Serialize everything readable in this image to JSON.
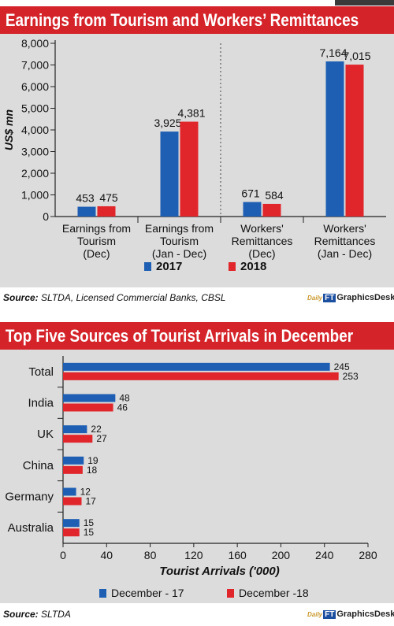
{
  "chart1": {
    "title": "Earnings from Tourism and Workers’ Remittances",
    "source_label": "Source:",
    "source_text": "SLTDA, Licensed Commercial Banks, CBSL",
    "logo": {
      "daily": "Daily",
      "ft": "FT",
      "desk": "GraphicsDesk"
    }
  },
  "chart2": {
    "title": "Top Five Sources of Tourist Arrivals in December",
    "source_label": "Source:",
    "source_text": "SLTDA",
    "logo": {
      "daily": "Daily",
      "ft": "FT",
      "desk": "GraphicsDesk"
    }
  },
  "colors": {
    "blue": "#1f5fb3",
    "red": "#e0252b",
    "banner": "#d5232a",
    "panel": "#dcdcdc"
  },
  "chart_data": [
    {
      "type": "bar",
      "title": "Earnings from Tourism and Workers’ Remittances",
      "ylabel": "US$ mn",
      "ylim": [
        0,
        8000
      ],
      "yticks": [
        "0",
        "1,000",
        "2,000",
        "3,000",
        "4,000",
        "5,000",
        "6,000",
        "7,000",
        "8,000"
      ],
      "categories": [
        [
          "Earnings from",
          "Tourism",
          "(Dec)"
        ],
        [
          "Earnings from",
          "Tourism",
          "(Jan - Dec)"
        ],
        [
          "Workers'",
          "Remittances",
          "(Dec)"
        ],
        [
          "Workers'",
          "Remittances",
          "(Jan - Dec)"
        ]
      ],
      "series": [
        {
          "name": "2017",
          "values": [
            453,
            3925,
            671,
            7164
          ],
          "labels": [
            "453",
            "3,925",
            "671",
            "7,164"
          ]
        },
        {
          "name": "2018",
          "values": [
            475,
            4381,
            584,
            7015
          ],
          "labels": [
            "475",
            "4,381",
            "584",
            "7,015"
          ]
        }
      ],
      "legend": "bottom",
      "grid": false
    },
    {
      "type": "bar",
      "orientation": "horizontal",
      "title": "Top Five Sources of Tourist Arrivals in December",
      "xlabel": "Tourist Arrivals ('000)",
      "xlim": [
        0,
        280
      ],
      "xticks": [
        "0",
        "40",
        "80",
        "120",
        "160",
        "200",
        "240",
        "280"
      ],
      "categories": [
        "Total",
        "India",
        "UK",
        "China",
        "Germany",
        "Australia"
      ],
      "series": [
        {
          "name": "December - 17",
          "values": [
            245,
            48,
            22,
            19,
            12,
            15
          ]
        },
        {
          "name": "December -18",
          "values": [
            253,
            46,
            27,
            18,
            17,
            15
          ]
        }
      ],
      "legend": "bottom",
      "grid": false
    }
  ]
}
